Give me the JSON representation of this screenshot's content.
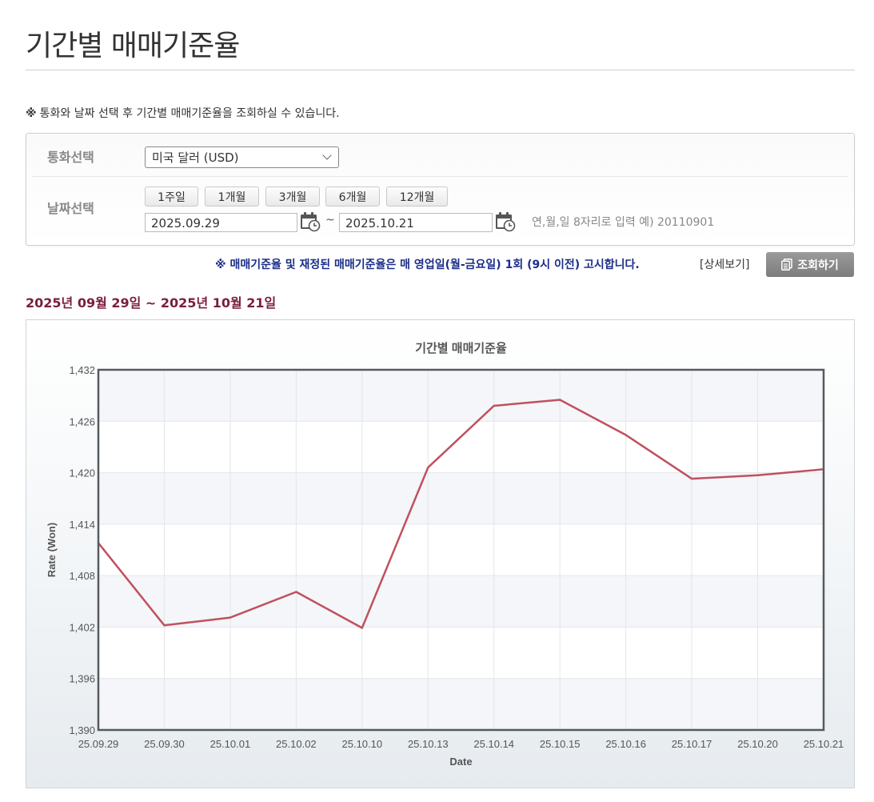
{
  "page": {
    "title": "기간별 매매기준율",
    "note_mark": "※",
    "note_text": "통화와 날짜 선택 후 기간별 매매기준율을 조회하실 수 있습니다."
  },
  "search": {
    "currency_label": "통화선택",
    "currency_value": "미국 달러 (USD)",
    "date_label": "날짜선택",
    "period_buttons": [
      "1주일",
      "1개월",
      "3개월",
      "6개월",
      "12개월"
    ],
    "start_date": "2025.09.29",
    "tilde": "~",
    "end_date": "2025.10.21",
    "date_hint": "연,월,일 8자리로 입력 예) 20110901"
  },
  "notice": {
    "text": "※ 매매기준율 및 재정된 매매기준율은 매 영업일(월-금요일) 1회 (9시 이전) 고시합니다.",
    "detail_link": "[상세보기]",
    "inquiry_button": "조회하기"
  },
  "range_title": "2025년 09월 29일 ~ 2025년 10월 21일",
  "colors": {
    "line": "#c0505f",
    "notice": "#1b2e88",
    "range_title": "#7a1e3c"
  },
  "chart_data": {
    "type": "line",
    "title": "기간별 매매기준율",
    "xlabel": "Date",
    "ylabel": "Rate (Won)",
    "categories": [
      "25.09.29",
      "25.09.30",
      "25.10.01",
      "25.10.02",
      "25.10.10",
      "25.10.13",
      "25.10.14",
      "25.10.15",
      "25.10.16",
      "25.10.17",
      "25.10.20",
      "25.10.21"
    ],
    "series": [
      {
        "values": [
          1411.8,
          1402.2,
          1403.1,
          1406.1,
          1401.9,
          1420.6,
          1427.8,
          1428.5,
          1424.4,
          1419.3,
          1419.7,
          1420.4
        ]
      }
    ],
    "ylim": [
      1390,
      1432
    ],
    "yticks": [
      1390,
      1396,
      1402,
      1408,
      1414,
      1420,
      1426,
      1432
    ],
    "ytick_labels": [
      "1,390",
      "1,396",
      "1,402",
      "1,408",
      "1,414",
      "1,420",
      "1,426",
      "1,432"
    ],
    "grid": true,
    "legend": "none"
  }
}
